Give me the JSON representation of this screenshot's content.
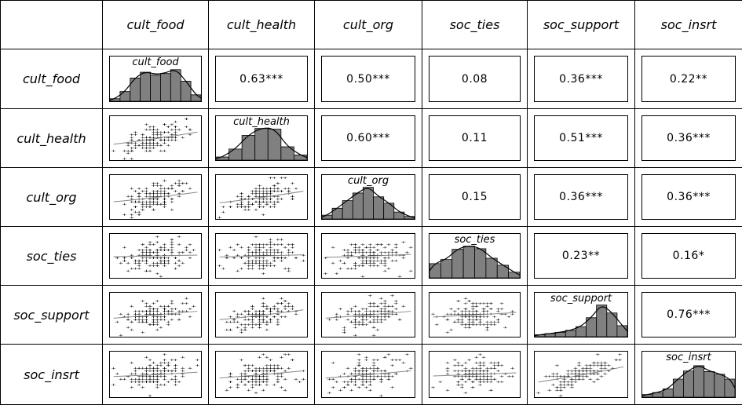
{
  "chart_data": {
    "type": "scatter_matrix",
    "variables": [
      "cult_food",
      "cult_health",
      "cult_org",
      "soc_ties",
      "soc_support",
      "soc_insrt"
    ],
    "correlations": [
      [
        null,
        "0.63***",
        "0.50***",
        "0.08",
        "0.36***",
        "0.22**"
      ],
      [
        null,
        null,
        "0.60***",
        "0.11",
        "0.51***",
        "0.36***"
      ],
      [
        null,
        null,
        null,
        "0.15",
        "0.36***",
        "0.36***"
      ],
      [
        null,
        null,
        null,
        null,
        "0.23**",
        "0.16*"
      ],
      [
        null,
        null,
        null,
        null,
        null,
        "0.76***"
      ],
      [
        null,
        null,
        null,
        null,
        null,
        null
      ]
    ],
    "histograms": {
      "cult_food": [
        0.08,
        0.3,
        0.72,
        0.9,
        0.82,
        0.86,
        0.98,
        0.62,
        0.2
      ],
      "cult_health": [
        0.1,
        0.35,
        0.78,
        1.0,
        0.98,
        0.42,
        0.16
      ],
      "cult_org": [
        0.12,
        0.34,
        0.58,
        0.82,
        1.0,
        0.7,
        0.5,
        0.22,
        0.08
      ],
      "soc_ties": [
        0.45,
        0.58,
        0.9,
        1.0,
        0.92,
        0.62,
        0.4,
        0.18
      ],
      "soc_support": [
        0.06,
        0.1,
        0.14,
        0.2,
        0.32,
        0.6,
        1.0,
        0.75,
        0.35
      ],
      "soc_insrt": [
        0.08,
        0.14,
        0.25,
        0.55,
        0.8,
        0.96,
        0.78,
        0.7,
        0.55
      ]
    },
    "density_curves": true,
    "lower_triangle": "scatterplots with loess smoothing lines"
  }
}
